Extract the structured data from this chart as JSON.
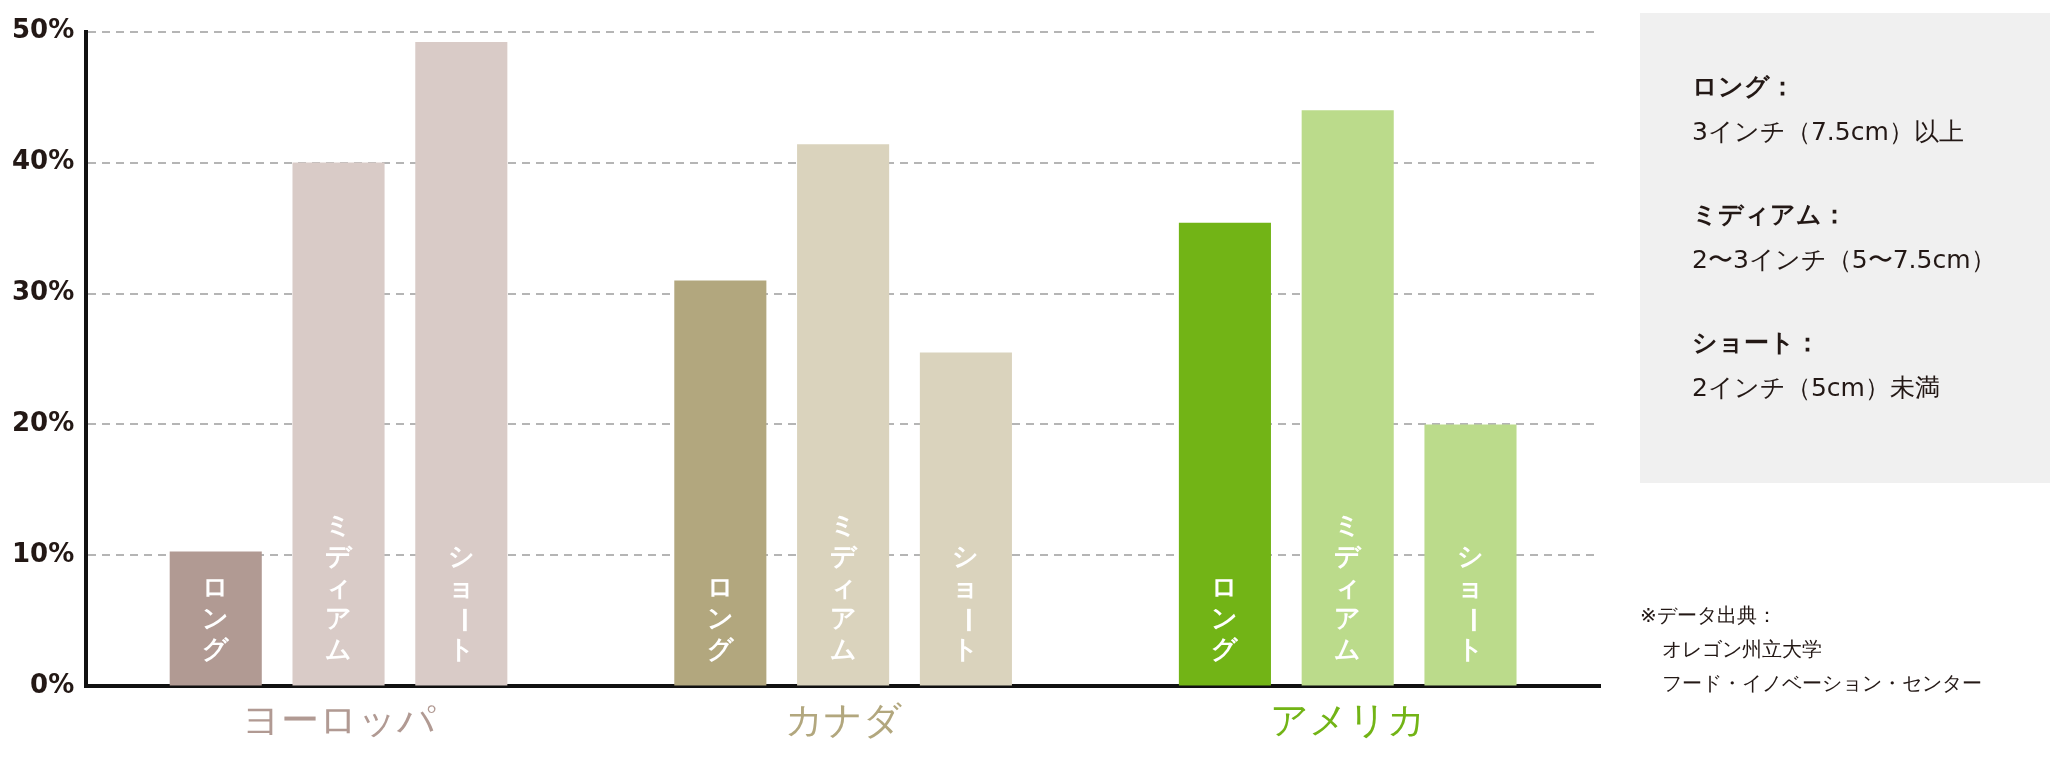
{
  "chart_data": {
    "type": "bar",
    "categories": [
      "ヨーロッパ",
      "カナダ",
      "アメリカ"
    ],
    "series": [
      {
        "name": "ロング",
        "colors": [
          "#b19a93",
          "#b2a77e",
          "#72b416"
        ],
        "values": [
          10.3,
          31.0,
          35.4
        ]
      },
      {
        "name": "ミディアム",
        "colors": [
          "#d9cbc7",
          "#dad3bd",
          "#bbdb8b"
        ],
        "values": [
          40.0,
          41.4,
          44.0
        ]
      },
      {
        "name": "ショート",
        "colors": [
          "#d9cbc7",
          "#dad3bd",
          "#bbdb8b"
        ],
        "values": [
          49.2,
          25.5,
          20.0
        ]
      }
    ],
    "ylim": [
      0,
      50
    ],
    "yticks": [
      {
        "value": 0,
        "label": "0%"
      },
      {
        "value": 10,
        "label": "10%"
      },
      {
        "value": 20,
        "label": "20%"
      },
      {
        "value": 30,
        "label": "30%"
      },
      {
        "value": 40,
        "label": "40%"
      },
      {
        "value": 50,
        "label": "50%"
      }
    ],
    "grid": "y",
    "legend": false,
    "annotations": [
      "ロング：\n3インチ（7.5cm）以上",
      "ミディアム：\n2〜3インチ（5〜7.5cm）",
      "ショート：\n2インチ（5cm）未満",
      "※データ出典：",
      "オレゴン州立大学",
      "フード・イノベーション・センター"
    ]
  }
}
